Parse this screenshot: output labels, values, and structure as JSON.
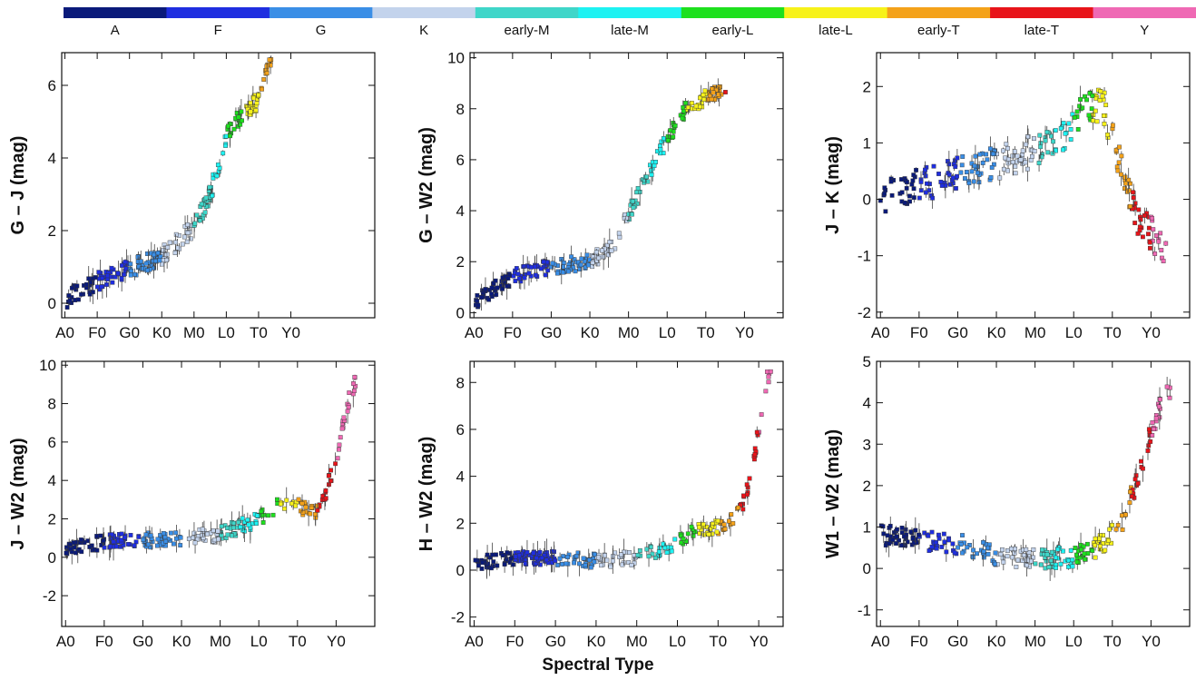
{
  "colorbar": {
    "classes": [
      {
        "label": "A",
        "color": "#0a1a7a"
      },
      {
        "label": "F",
        "color": "#1f2ee0"
      },
      {
        "label": "G",
        "color": "#3a8ee6"
      },
      {
        "label": "K",
        "color": "#c3d3ec"
      },
      {
        "label": "early-M",
        "color": "#3fd6c9"
      },
      {
        "label": "late-M",
        "color": "#1ef2f2"
      },
      {
        "label": "early-L",
        "color": "#1ee01e"
      },
      {
        "label": "late-L",
        "color": "#f7f21a"
      },
      {
        "label": "early-T",
        "color": "#f4a21a"
      },
      {
        "label": "late-T",
        "color": "#e8141a"
      },
      {
        "label": "Y",
        "color": "#ef69b4"
      }
    ]
  },
  "x_axis_title": "Spectral Type",
  "chart_data": [
    {
      "type": "scatter",
      "ylabel": "G – J (mag)",
      "ylim": [
        -0.4,
        6.9
      ],
      "yticks": [
        0,
        2,
        4,
        6
      ],
      "xlim": [
        -1,
        96
      ],
      "xticks": [
        0,
        10,
        20,
        30,
        40,
        50,
        60,
        70
      ],
      "xticklabels": [
        "A0",
        "F0",
        "G0",
        "K0",
        "M0",
        "L0",
        "T0",
        "Y0"
      ],
      "trend": [
        [
          0,
          0.1
        ],
        [
          10,
          0.6
        ],
        [
          20,
          0.95
        ],
        [
          30,
          1.3
        ],
        [
          40,
          2.1
        ],
        [
          45,
          3.0
        ],
        [
          50,
          4.6
        ],
        [
          55,
          5.2
        ],
        [
          60,
          5.6
        ],
        [
          62,
          6.3
        ],
        [
          64,
          6.6
        ]
      ],
      "x_end": 64,
      "scatter_spread": 0.25
    },
    {
      "type": "scatter",
      "ylabel": "G – W2 (mag)",
      "ylim": [
        -0.2,
        10.2
      ],
      "yticks": [
        0,
        2,
        4,
        6,
        8,
        10
      ],
      "xlim": [
        -1,
        80
      ],
      "xticks": [
        0,
        10,
        20,
        30,
        40,
        50,
        60,
        70
      ],
      "xticklabels": [
        "A0",
        "F0",
        "G0",
        "K0",
        "M0",
        "L0",
        "T0",
        "Y0"
      ],
      "trend": [
        [
          0,
          0.4
        ],
        [
          10,
          1.4
        ],
        [
          20,
          1.8
        ],
        [
          30,
          2.0
        ],
        [
          36,
          2.6
        ],
        [
          42,
          4.5
        ],
        [
          48,
          6.3
        ],
        [
          55,
          8.0
        ],
        [
          62,
          8.6
        ],
        [
          66,
          8.8
        ]
      ],
      "x_end": 66,
      "scatter_spread": 0.3
    },
    {
      "type": "scatter",
      "ylabel": "J – K (mag)",
      "ylim": [
        -2.1,
        2.6
      ],
      "yticks": [
        -2,
        -1,
        0,
        1,
        2
      ],
      "xlim": [
        -1,
        80
      ],
      "xticks": [
        0,
        10,
        20,
        30,
        40,
        50,
        60,
        70
      ],
      "xticklabels": [
        "A0",
        "F0",
        "G0",
        "K0",
        "M0",
        "L0",
        "T0",
        "Y0"
      ],
      "trend": [
        [
          0,
          0.0
        ],
        [
          10,
          0.25
        ],
        [
          20,
          0.45
        ],
        [
          30,
          0.65
        ],
        [
          40,
          0.85
        ],
        [
          48,
          1.2
        ],
        [
          54,
          1.7
        ],
        [
          58,
          1.6
        ],
        [
          62,
          0.6
        ],
        [
          66,
          -0.3
        ],
        [
          70,
          -0.6
        ],
        [
          73,
          -0.8
        ]
      ],
      "x_end": 74,
      "scatter_spread": 0.3
    },
    {
      "type": "scatter",
      "ylabel": "J – W2 (mag)",
      "ylim": [
        -3.6,
        10.2
      ],
      "yticks": [
        -2,
        0,
        2,
        4,
        6,
        8,
        10
      ],
      "xlim": [
        -1,
        80
      ],
      "xticks": [
        0,
        10,
        20,
        30,
        40,
        50,
        60,
        70
      ],
      "xticklabels": [
        "A0",
        "F0",
        "G0",
        "K0",
        "M0",
        "L0",
        "T0",
        "Y0"
      ],
      "trend": [
        [
          0,
          0.4
        ],
        [
          10,
          0.8
        ],
        [
          20,
          0.9
        ],
        [
          30,
          1.0
        ],
        [
          40,
          1.2
        ],
        [
          50,
          2.0
        ],
        [
          56,
          2.9
        ],
        [
          62,
          2.5
        ],
        [
          66,
          2.4
        ],
        [
          69,
          4.5
        ],
        [
          71,
          6.0
        ],
        [
          73,
          8.0
        ],
        [
          75,
          9.2
        ]
      ],
      "x_end": 75,
      "scatter_spread": 0.4
    },
    {
      "type": "scatter",
      "ylabel": "H – W2 (mag)",
      "ylim": [
        -2.4,
        8.9
      ],
      "yticks": [
        -2,
        0,
        2,
        4,
        6,
        8
      ],
      "xlim": [
        -1,
        76
      ],
      "xticks": [
        0,
        10,
        20,
        30,
        40,
        50,
        60,
        70
      ],
      "xticklabels": [
        "A0",
        "F0",
        "G0",
        "K0",
        "M0",
        "L0",
        "T0",
        "Y0"
      ],
      "trend": [
        [
          0,
          0.3
        ],
        [
          10,
          0.5
        ],
        [
          20,
          0.5
        ],
        [
          30,
          0.4
        ],
        [
          40,
          0.5
        ],
        [
          50,
          1.2
        ],
        [
          56,
          1.8
        ],
        [
          62,
          1.8
        ],
        [
          66,
          2.8
        ],
        [
          68,
          4.0
        ],
        [
          70,
          6.0
        ],
        [
          72,
          8.2
        ]
      ],
      "x_end": 73,
      "scatter_spread": 0.3
    },
    {
      "type": "scatter",
      "ylabel": "W1 – W2 (mag)",
      "ylim": [
        -1.4,
        5.0
      ],
      "yticks": [
        -1,
        0,
        1,
        2,
        3,
        4,
        5
      ],
      "xlim": [
        -1,
        80
      ],
      "xticks": [
        0,
        10,
        20,
        30,
        40,
        50,
        60,
        70
      ],
      "xticklabels": [
        "A0",
        "F0",
        "G0",
        "K0",
        "M0",
        "L0",
        "T0",
        "Y0"
      ],
      "trend": [
        [
          0,
          0.8
        ],
        [
          10,
          0.7
        ],
        [
          20,
          0.6
        ],
        [
          30,
          0.3
        ],
        [
          40,
          0.2
        ],
        [
          50,
          0.3
        ],
        [
          56,
          0.5
        ],
        [
          62,
          1.0
        ],
        [
          66,
          2.0
        ],
        [
          69,
          3.0
        ],
        [
          71,
          3.6
        ],
        [
          74,
          4.3
        ]
      ],
      "x_end": 75,
      "scatter_spread": 0.25
    }
  ]
}
